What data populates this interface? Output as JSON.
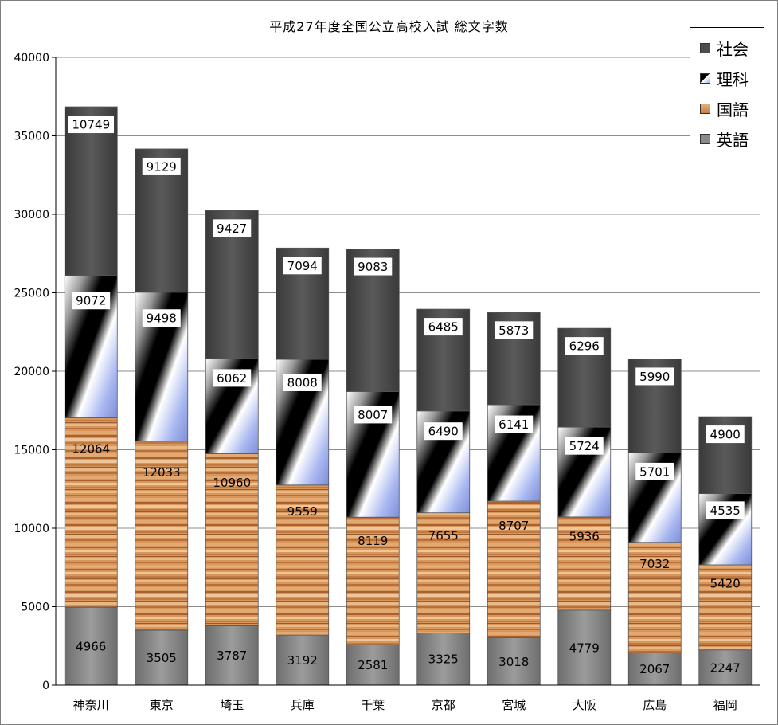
{
  "chart_data": {
    "type": "bar",
    "stacked": true,
    "title": "平成27年度全国公立高校入試 総文字数",
    "xlabel": "",
    "ylabel": "",
    "ylim": [
      0,
      40000
    ],
    "yticks": [
      0,
      5000,
      10000,
      15000,
      20000,
      25000,
      30000,
      35000,
      40000
    ],
    "grid": true,
    "legend_position": "top-right",
    "categories": [
      "神奈川",
      "東京",
      "埼玉",
      "兵庫",
      "千葉",
      "京都",
      "宮城",
      "大阪",
      "広島",
      "福岡"
    ],
    "series": [
      {
        "name": "英語",
        "color": "#8a8a8a",
        "values": [
          4966,
          3505,
          3787,
          3192,
          2581,
          3325,
          3018,
          4779,
          2067,
          2247
        ]
      },
      {
        "name": "国語",
        "color": "#d9965a",
        "values": [
          12064,
          12033,
          10960,
          9559,
          8119,
          7655,
          8707,
          5936,
          7032,
          5420
        ]
      },
      {
        "name": "理科",
        "color": "#a9b8f0",
        "values": [
          9072,
          9498,
          6062,
          8008,
          8007,
          6490,
          6141,
          5724,
          5701,
          4535
        ]
      },
      {
        "name": "社会",
        "color": "#4d4d4d",
        "values": [
          10749,
          9129,
          9427,
          7094,
          9083,
          6485,
          5873,
          6296,
          5990,
          4900
        ]
      }
    ],
    "legend_order": [
      "社会",
      "理科",
      "国語",
      "英語"
    ]
  }
}
